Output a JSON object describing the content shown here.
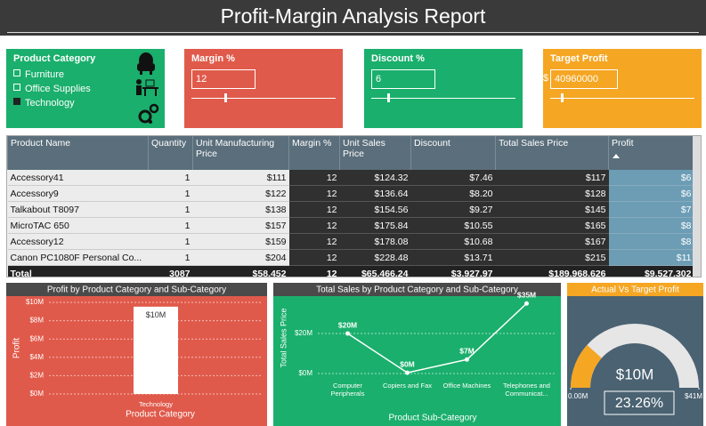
{
  "header": {
    "title": "Profit-Margin Analysis Report"
  },
  "filters": {
    "category": {
      "label": "Product Category",
      "options": [
        {
          "name": "Furniture",
          "selected": false
        },
        {
          "name": "Office Supplies",
          "selected": false
        },
        {
          "name": "Technology",
          "selected": true
        }
      ]
    },
    "margin": {
      "label": "Margin %",
      "value": "12"
    },
    "discount": {
      "label": "Discount %",
      "value": "6"
    },
    "target": {
      "label": "Target Profit",
      "prefix": "$",
      "value": "40960000"
    }
  },
  "table": {
    "columns": [
      "Product Name",
      "Quantity",
      "Unit Manufacturing Price",
      "Margin %",
      "Unit Sales Price",
      "Discount",
      "Total Sales Price",
      "Profit"
    ],
    "rows": [
      [
        "Accessory41",
        "1",
        "$111",
        "12",
        "$124.32",
        "$7.46",
        "$117",
        "$6"
      ],
      [
        "Accessory9",
        "1",
        "$122",
        "12",
        "$136.64",
        "$8.20",
        "$128",
        "$6"
      ],
      [
        "Talkabout T8097",
        "1",
        "$138",
        "12",
        "$154.56",
        "$9.27",
        "$145",
        "$7"
      ],
      [
        "MicroTAC 650",
        "1",
        "$157",
        "12",
        "$175.84",
        "$10.55",
        "$165",
        "$8"
      ],
      [
        "Accessory12",
        "1",
        "$159",
        "12",
        "$178.08",
        "$10.68",
        "$167",
        "$8"
      ],
      [
        "Canon PC1080F Personal Co...",
        "1",
        "$204",
        "12",
        "$228.48",
        "$13.71",
        "$215",
        "$11"
      ]
    ],
    "total": [
      "Total",
      "3087",
      "$58,452",
      "12",
      "$65,466.24",
      "$3,927.97",
      "$189,968,626",
      "$9,527,302"
    ]
  },
  "chart_data": [
    {
      "type": "bar",
      "title": "Profit by Product Category and Sub-Category",
      "xlabel": "Product Category",
      "ylabel": "Profit",
      "categories": [
        "Technology"
      ],
      "values": [
        9.53
      ],
      "value_labels": [
        "$10M"
      ],
      "color": "#ffffff",
      "ylim": [
        0,
        10
      ],
      "yticks": [
        {
          "value": 0,
          "label": "$0M"
        },
        {
          "value": 2,
          "label": "$2M"
        },
        {
          "value": 4,
          "label": "$4M"
        },
        {
          "value": 6,
          "label": "$6M"
        },
        {
          "value": 8,
          "label": "$8M"
        },
        {
          "value": 10,
          "label": "$10M"
        }
      ],
      "grid": true
    },
    {
      "type": "line",
      "title": "Total Sales by Product Category and Sub-Category",
      "xlabel": "Product Sub-Category",
      "ylabel": "Total Sales Price",
      "categories": [
        "Computer Peripherals",
        "Copiers and Fax",
        "Office Machines",
        "Telephones and Communicat..."
      ],
      "values": [
        20,
        0.4,
        7,
        35
      ],
      "value_labels": [
        "$20M",
        "$0M",
        "$7M",
        "$35M"
      ],
      "color": "#ffffff",
      "ylim": [
        0,
        40
      ],
      "yticks": [
        {
          "value": 0,
          "label": "$0M"
        },
        {
          "value": 20,
          "label": "$20M"
        }
      ],
      "grid": true
    },
    {
      "type": "gauge",
      "title": "Actual Vs Target Profit",
      "value": 9.53,
      "value_label": "$10M",
      "ylim": [
        0,
        40.96
      ],
      "yticks": [
        {
          "value": 0,
          "label": "0.00M"
        },
        {
          "value": 40.96,
          "label": "$41M"
        }
      ],
      "percent": {
        "value": 23.26,
        "label": "23.26%"
      },
      "color": "#f5a623"
    }
  ]
}
